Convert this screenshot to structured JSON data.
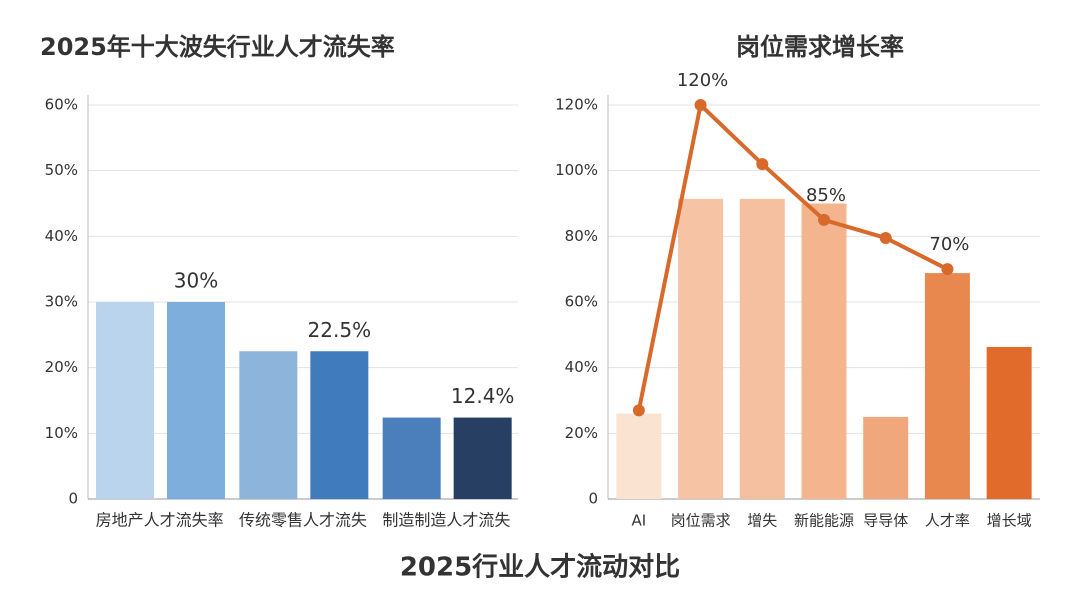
{
  "title": "2025行业人才流动对比",
  "chart_data": [
    {
      "type": "bar",
      "title": "2025年十大波失行业人才流失率",
      "categories": [
        "房地产人才流失率",
        "传统零售人才流失",
        "制造制造人才流失"
      ],
      "series": [
        {
          "colors": [
            "#b9d4ec",
            "#8db5dc",
            "#4a7fbc"
          ],
          "values": [
            30,
            22.5,
            12.4
          ]
        },
        {
          "colors": [
            "#7eaedb",
            "#3f7bbd",
            "#263f63"
          ],
          "values": [
            30,
            22.5,
            12.4
          ],
          "value_labels": [
            "30%",
            "22.5%",
            "12.4%"
          ]
        }
      ],
      "ylim": [
        0,
        60
      ],
      "yticks": [
        0,
        {
          "value": 10,
          "label": "10%"
        },
        {
          "value": 20,
          "label": "20%"
        },
        {
          "value": 30,
          "label": "30%"
        },
        {
          "value": 40,
          "label": "40%"
        },
        {
          "value": 50,
          "label": "50%"
        },
        {
          "value": 60,
          "label": "60%"
        }
      ],
      "grid": true
    },
    {
      "type": "combo",
      "title": "岗位需求增长率",
      "categories": [
        "AI",
        "岗位需求",
        "增失",
        "新能能源",
        "导导体",
        "人才率",
        "增长域"
      ],
      "series": [
        {
          "type": "bar",
          "colors": [
            "#fbe3d2",
            "#f6c3a5",
            "#f5c0a0",
            "#f4b58e",
            "#f1a77c",
            "#e8884f",
            "#e06b2a"
          ],
          "values": [
            26,
            91.4,
            91.4,
            90,
            25,
            68.8,
            46.3
          ]
        },
        {
          "type": "line",
          "color": "#d8692b",
          "values": [
            27,
            120,
            102,
            85,
            79.5,
            70,
            null
          ],
          "value_labels": [
            null,
            "120%",
            null,
            "85%",
            null,
            "70%",
            null
          ]
        }
      ],
      "ylim": [
        0,
        120
      ],
      "yticks": [
        0,
        {
          "value": 20,
          "label": "20%"
        },
        {
          "value": 40,
          "label": "40%"
        },
        {
          "value": 60,
          "label": "60%"
        },
        {
          "value": 80,
          "label": "80%"
        },
        {
          "value": 100,
          "label": "100%"
        },
        {
          "value": 120,
          "label": "120%"
        }
      ],
      "grid": true
    }
  ]
}
